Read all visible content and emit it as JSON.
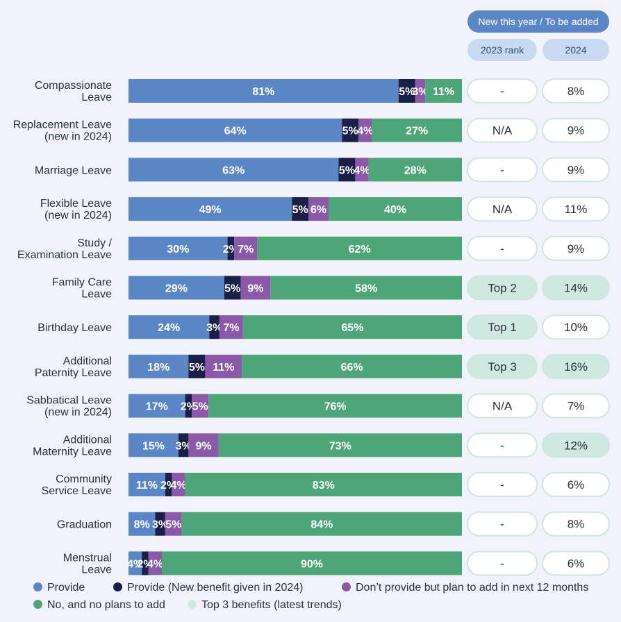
{
  "header": {
    "new_this_year": "New this year / To be added",
    "rank_2023": "2023 rank",
    "col_2024": "2024"
  },
  "colors": {
    "provide": "#5b86c6",
    "provide_new": "#1a1f47",
    "plan_to_add": "#8a5aa8",
    "no_plans": "#4ea577",
    "top3": "#cfe8e0",
    "pill_border": "#cfe5df",
    "background": "#f0f3f9"
  },
  "legend": {
    "provide": "Provide",
    "provide_new": "Provide (New benefit given in 2024)",
    "plan_to_add": "Don’t provide but plan to add in next 12 months",
    "no_plans": "No, and no plans to add",
    "top3": "Top 3 benefits (latest trends)"
  },
  "chart_data": {
    "type": "bar",
    "orientation": "horizontal",
    "stacked": true,
    "unit": "%",
    "categories": [
      [
        "Compassionate",
        "Leave"
      ],
      [
        "Replacement Leave",
        "(new in 2024)"
      ],
      [
        "Marriage Leave"
      ],
      [
        "Flexible Leave",
        "(new in 2024)"
      ],
      [
        "Study /",
        "Examination Leave"
      ],
      [
        "Family Care",
        "Leave"
      ],
      [
        "Birthday Leave"
      ],
      [
        "Additional",
        "Paternity Leave"
      ],
      [
        "Sabbatical Leave",
        "(new in 2024)"
      ],
      [
        "Additional",
        "Maternity Leave"
      ],
      [
        "Community",
        "Service Leave"
      ],
      [
        "Graduation"
      ],
      [
        "Menstrual",
        "Leave"
      ]
    ],
    "series": [
      {
        "name": "Provide",
        "values": [
          81,
          64,
          63,
          49,
          30,
          29,
          24,
          18,
          17,
          15,
          11,
          8,
          4
        ]
      },
      {
        "name": "Provide (New benefit given in 2024)",
        "values": [
          5,
          5,
          5,
          5,
          2,
          5,
          3,
          5,
          2,
          3,
          2,
          3,
          2
        ]
      },
      {
        "name": "Don’t provide but plan to add in next 12 months",
        "values": [
          3,
          4,
          4,
          6,
          7,
          9,
          7,
          11,
          5,
          9,
          4,
          5,
          4
        ]
      },
      {
        "name": "No, and no plans to add",
        "values": [
          11,
          27,
          28,
          40,
          62,
          58,
          65,
          66,
          76,
          73,
          83,
          84,
          90
        ]
      }
    ],
    "rank_2023": [
      "-",
      "N/A",
      "-",
      "N/A",
      "-",
      "Top 2",
      "Top 1",
      "Top 3",
      "N/A",
      "-",
      "-",
      "-",
      "-"
    ],
    "new_2024": [
      "8%",
      "9%",
      "9%",
      "11%",
      "9%",
      "14%",
      "10%",
      "16%",
      "7%",
      "12%",
      "6%",
      "8%",
      "6%"
    ],
    "top3_rank_2023": [
      false,
      false,
      false,
      false,
      false,
      true,
      true,
      true,
      false,
      false,
      false,
      false,
      false
    ],
    "top3_2024": [
      false,
      false,
      false,
      false,
      false,
      true,
      false,
      true,
      false,
      true,
      false,
      false,
      false
    ]
  }
}
